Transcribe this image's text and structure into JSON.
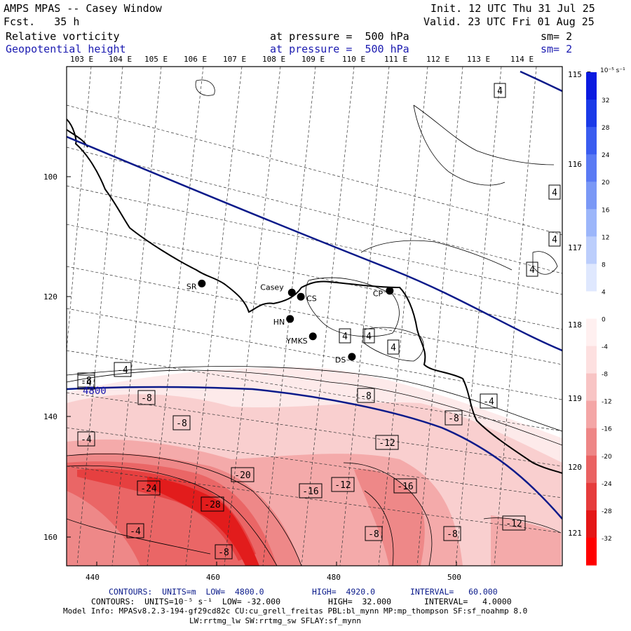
{
  "header": {
    "model_title": "AMPS MPAS -- Casey Window",
    "init": "Init. 12 UTC Thu 31 Jul 25",
    "fcst": "Fcst.   35 h",
    "valid": "Valid. 23 UTC Fri 01 Aug 25",
    "field1_name": "Relative vorticity",
    "field1_pressure": "at pressure =  500 hPa",
    "field1_sm": "sm= 2",
    "field2_name": "Geopotential height",
    "field2_pressure": "at pressure =  500 hPa",
    "field2_sm": "sm= 2"
  },
  "colorbar": {
    "unit_label": "10⁻⁵ s⁻¹",
    "levels": [
      32,
      28,
      24,
      20,
      16,
      12,
      8,
      4,
      0,
      -4,
      -8,
      -12,
      -16,
      -20,
      -24,
      -28,
      -32
    ],
    "colors": [
      "#0a1ae0",
      "#1a3ae8",
      "#3a5cf0",
      "#5a7af4",
      "#7a98f6",
      "#9cb6fa",
      "#bccefc",
      "#dfe8fe",
      "#ffffff",
      "#fff0f0",
      "#fde0e0",
      "#f8c4c4",
      "#f4a6a6",
      "#ee8686",
      "#ea6262",
      "#e63c3c",
      "#e41616",
      "#ff0000"
    ]
  },
  "chart_data": {
    "type": "contour-map",
    "x_ticks": [
      440,
      460,
      480,
      500
    ],
    "y_ticks": [
      100,
      120,
      140,
      160
    ],
    "xlim": [
      435,
      517
    ],
    "ylim": [
      165,
      82
    ],
    "lon_labels": [
      "103 E",
      "104 E",
      "105 E",
      "106 E",
      "107 E",
      "108 E",
      "109 E",
      "110 E",
      "111 E",
      "112 E",
      "113 E",
      "114 E",
      "115 E",
      "116 E",
      "117 E",
      "118 E",
      "119 E",
      "120 E",
      "121 E"
    ],
    "height_contour_labels": [
      "4800"
    ],
    "vorticity_contour_labels": [
      "4",
      "4",
      "4",
      "4",
      "4",
      "4",
      "4",
      "-4",
      "-4",
      "-4",
      "-4",
      "-4",
      "-8",
      "-8",
      "-8",
      "-8",
      "-8",
      "-8",
      "-8",
      "-8",
      "-12",
      "-12",
      "-12",
      "-16",
      "-16",
      "-20",
      "-24",
      "-28"
    ],
    "stations": [
      {
        "name": "SR",
        "x": 457.5,
        "y": 117.8
      },
      {
        "name": "Casey",
        "x": 472.5,
        "y": 119.3
      },
      {
        "name": "CS",
        "x": 474,
        "y": 120
      },
      {
        "name": "CP",
        "x": 488.8,
        "y": 119
      },
      {
        "name": "HN",
        "x": 472.2,
        "y": 123.7
      },
      {
        "name": "YMKS",
        "x": 476,
        "y": 126.6
      },
      {
        "name": "DS",
        "x": 482.5,
        "y": 130
      }
    ]
  },
  "footer": {
    "line1_a": "CONTOURS:  UNITS=m  LOW=  4800.0",
    "line1_b": "HIGH=  4920.0",
    "line1_c": "INTERVAL=   60.000",
    "line2_a": "CONTOURS:  UNITS=10⁻⁵ s⁻¹  LOW= -32.000",
    "line2_b": "HIGH=  32.000",
    "line2_c": "INTERVAL=   4.0000",
    "line3": "Model Info: MPASv8.2.3-194-gf29cd82c CU:cu_grell_freitas PBL:bl_mynn MP:mp_thompson SF:sf_noahmp 8.0",
    "line4": "LW:rrtmg_lw SW:rrtmg_sw SFLAY:sf_mynn"
  }
}
